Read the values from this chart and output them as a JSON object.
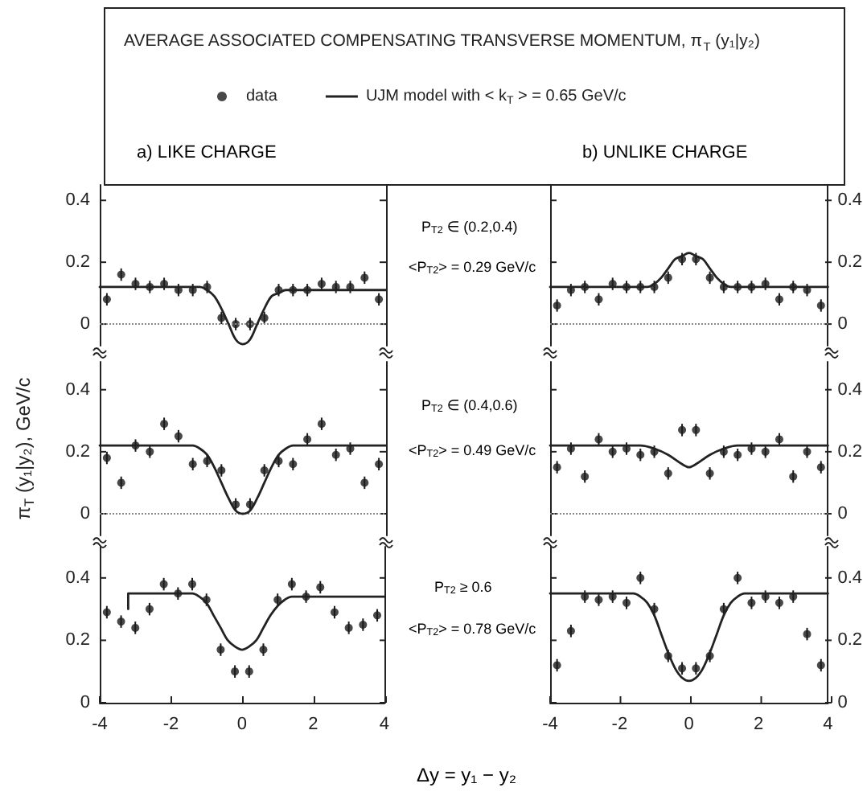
{
  "chart_data": [
    {
      "type": "scatter",
      "title": "AVERAGE ASSOCIATED COMPENSATING TRANSVERSE MOMENTUM, π$_{T}$ (y₁|y₂)",
      "legend": "top",
      "annotations": [
        "a) LIKE CHARGE"
      ],
      "xlim": [
        -4,
        4
      ],
      "ylim": [
        -0.07,
        0.45
      ],
      "yticks": [
        0,
        0.2,
        0.4
      ],
      "tick_labels": "y",
      "ref_lines": [
        {
          "axis": "y",
          "value": 0,
          "line_style": "dotted",
          "color": "#888888"
        }
      ],
      "series": [
        {
          "name": "data",
          "type": "scatter",
          "marker": "circle",
          "color": "#1a1a1a",
          "x": [
            -3.8,
            -3.4,
            -3.0,
            -2.6,
            -2.2,
            -1.8,
            -1.4,
            -1.0,
            -0.6,
            -0.2,
            0.2,
            0.6,
            1.0,
            1.4,
            1.8,
            2.2,
            2.6,
            3.0,
            3.4,
            3.8
          ],
          "values": [
            0.08,
            0.16,
            0.13,
            0.12,
            0.13,
            0.11,
            0.11,
            0.12,
            0.02,
            0,
            0,
            0.02,
            0.11,
            0.11,
            0.11,
            0.13,
            0.12,
            0.12,
            0.15,
            0.08
          ],
          "errors": [
            0.02,
            0.02,
            0.02,
            0.02,
            0.02,
            0.02,
            0.02,
            0.02,
            0.02,
            0.02,
            0.02,
            0.02,
            0.02,
            0.02,
            0.02,
            0.02,
            0.02,
            0.02,
            0.02,
            0.02
          ]
        },
        {
          "name": "UJM model with < k$_{T}$ > = 0.65 GeV/c",
          "type": "line",
          "marker": "none",
          "line_style": "solid",
          "color": "#222222",
          "x": [
            -4,
            -1.2,
            -1.0,
            -0.8,
            -0.6,
            -0.4,
            -0.2,
            0,
            0.2,
            0.4,
            0.6,
            0.8,
            1.0,
            1.2,
            4
          ],
          "values": [
            0.12,
            0.12,
            0.11,
            0.09,
            0.05,
            0.0,
            -0.05,
            -0.065,
            -0.05,
            0.0,
            0.05,
            0.09,
            0.1,
            0.11,
            0.11
          ]
        }
      ]
    },
    {
      "type": "scatter",
      "annotations": [
        "b) UNLIKE CHARGE",
        "P$_{T2}$ ∈ (0.2,0.4)",
        "<P$_{T2}$> = 0.29 GeV/c"
      ],
      "xlim": [
        -4,
        4
      ],
      "ylim": [
        -0.07,
        0.45
      ],
      "yticks": [
        0,
        0.2,
        0.4
      ],
      "tick_labels": "y",
      "ref_lines": [
        {
          "axis": "y",
          "value": 0,
          "line_style": "dotted",
          "color": "#888888"
        }
      ],
      "series": [
        {
          "type": "scatter",
          "marker": "circle",
          "color": "#1a1a1a",
          "x": [
            -3.8,
            -3.4,
            -3.0,
            -2.6,
            -2.2,
            -1.8,
            -1.4,
            -1.0,
            -0.6,
            -0.2,
            0.2,
            0.6,
            1.0,
            1.4,
            1.8,
            2.2,
            2.6,
            3.0,
            3.4,
            3.8
          ],
          "values": [
            0.06,
            0.11,
            0.12,
            0.08,
            0.13,
            0.12,
            0.12,
            0.12,
            0.15,
            0.21,
            0.21,
            0.15,
            0.12,
            0.12,
            0.12,
            0.13,
            0.08,
            0.12,
            0.11,
            0.06
          ],
          "errors": [
            0.02,
            0.02,
            0.02,
            0.02,
            0.02,
            0.02,
            0.02,
            0.02,
            0.02,
            0.02,
            0.02,
            0.02,
            0.02,
            0.02,
            0.02,
            0.02,
            0.02,
            0.02,
            0.02,
            0.02
          ]
        },
        {
          "type": "line",
          "marker": "none",
          "line_style": "solid",
          "color": "#222222",
          "x": [
            -4,
            -1.2,
            -1.0,
            -0.8,
            -0.6,
            -0.4,
            -0.2,
            0,
            0.2,
            0.4,
            0.6,
            0.8,
            1.0,
            1.2,
            4
          ],
          "values": [
            0.12,
            0.12,
            0.13,
            0.15,
            0.18,
            0.21,
            0.22,
            0.23,
            0.22,
            0.21,
            0.18,
            0.15,
            0.13,
            0.12,
            0.12
          ]
        }
      ]
    },
    {
      "type": "scatter",
      "ylabel": "π$_{T}$ (y₁|y₂), GeV/c",
      "xlim": [
        -4,
        4
      ],
      "ylim": [
        -0.07,
        0.49
      ],
      "yticks": [
        0,
        0.2,
        0.4
      ],
      "tick_labels": "y",
      "ref_lines": [
        {
          "axis": "y",
          "value": 0,
          "line_style": "dotted",
          "color": "#888888"
        }
      ],
      "series": [
        {
          "type": "scatter",
          "marker": "circle",
          "color": "#1a1a1a",
          "x": [
            -3.8,
            -3.4,
            -3.0,
            -2.6,
            -2.2,
            -1.8,
            -1.4,
            -1.0,
            -0.6,
            -0.2,
            0.2,
            0.6,
            1.0,
            1.4,
            1.8,
            2.2,
            2.6,
            3.0,
            3.4,
            3.8
          ],
          "values": [
            0.18,
            0.1,
            0.22,
            0.2,
            0.29,
            0.25,
            0.16,
            0.17,
            0.14,
            0.03,
            0.03,
            0.14,
            0.17,
            0.16,
            0.24,
            0.29,
            0.19,
            0.21,
            0.1,
            0.16
          ],
          "errors": [
            0.02,
            0.02,
            0.02,
            0.02,
            0.02,
            0.02,
            0.02,
            0.02,
            0.02,
            0.02,
            0.02,
            0.02,
            0.02,
            0.02,
            0.02,
            0.02,
            0.02,
            0.02,
            0.02,
            0.02
          ]
        },
        {
          "type": "line",
          "marker": "none",
          "line_style": "solid",
          "color": "#222222",
          "x": [
            -4,
            -1.4,
            -1.2,
            -1.0,
            -0.8,
            -0.6,
            -0.4,
            -0.2,
            0,
            0.2,
            0.4,
            0.6,
            0.8,
            1.0,
            1.2,
            1.4,
            4
          ],
          "values": [
            0.22,
            0.22,
            0.21,
            0.19,
            0.15,
            0.1,
            0.05,
            0.01,
            0,
            0.01,
            0.05,
            0.1,
            0.15,
            0.19,
            0.21,
            0.22,
            0.22
          ]
        }
      ]
    },
    {
      "type": "scatter",
      "annotations": [
        "P$_{T2}$ ∈ (0.4,0.6)",
        "<P$_{T2}$> = 0.49 GeV/c"
      ],
      "xlim": [
        -4,
        4
      ],
      "ylim": [
        -0.07,
        0.49
      ],
      "yticks": [
        0,
        0.2,
        0.4
      ],
      "tick_labels": "y",
      "ref_lines": [
        {
          "axis": "y",
          "value": 0,
          "line_style": "dotted",
          "color": "#888888"
        }
      ],
      "series": [
        {
          "type": "scatter",
          "marker": "circle",
          "color": "#1a1a1a",
          "x": [
            -3.8,
            -3.4,
            -3.0,
            -2.6,
            -2.2,
            -1.8,
            -1.4,
            -1.0,
            -0.6,
            -0.2,
            0.2,
            0.6,
            1.0,
            1.4,
            1.8,
            2.2,
            2.6,
            3.0,
            3.4,
            3.8
          ],
          "values": [
            0.15,
            0.21,
            0.12,
            0.24,
            0.2,
            0.21,
            0.19,
            0.2,
            0.13,
            0.27,
            0.27,
            0.13,
            0.2,
            0.19,
            0.21,
            0.2,
            0.24,
            0.12,
            0.2,
            0.15
          ],
          "errors": [
            0.02,
            0.02,
            0.02,
            0.02,
            0.02,
            0.02,
            0.02,
            0.02,
            0.02,
            0.02,
            0.02,
            0.02,
            0.02,
            0.02,
            0.02,
            0.02,
            0.02,
            0.02,
            0.02,
            0.02
          ]
        },
        {
          "type": "line",
          "marker": "none",
          "line_style": "solid",
          "color": "#222222",
          "x": [
            -4,
            -1.4,
            -1.0,
            -0.6,
            -0.2,
            0,
            0.2,
            0.6,
            1.0,
            1.4,
            4
          ],
          "values": [
            0.22,
            0.22,
            0.21,
            0.19,
            0.16,
            0.15,
            0.16,
            0.19,
            0.21,
            0.22,
            0.22
          ]
        }
      ]
    },
    {
      "type": "scatter",
      "xlim": [
        -4,
        4
      ],
      "ylim": [
        0,
        0.5
      ],
      "xticks": [
        -4,
        -2,
        0,
        2,
        4
      ],
      "yticks": [
        0,
        0.2,
        0.4
      ],
      "series": [
        {
          "type": "scatter",
          "marker": "circle",
          "color": "#1a1a1a",
          "x": [
            -3.8,
            -3.4,
            -3.0,
            -2.6,
            -2.2,
            -1.8,
            -1.4,
            -1.0,
            -0.6,
            -0.2,
            0.2,
            0.6,
            1.0,
            1.4,
            1.8,
            2.2,
            2.6,
            3.0,
            3.4,
            3.8
          ],
          "values": [
            0.29,
            0.26,
            0.24,
            0.3,
            0.38,
            0.35,
            0.38,
            0.33,
            0.17,
            0.1,
            0.1,
            0.17,
            0.33,
            0.38,
            0.34,
            0.37,
            0.29,
            0.24,
            0.25,
            0.28
          ],
          "errors": [
            0.02,
            0.02,
            0.02,
            0.02,
            0.02,
            0.02,
            0.02,
            0.02,
            0.02,
            0.02,
            0.02,
            0.02,
            0.02,
            0.02,
            0.02,
            0.02,
            0.02,
            0.02,
            0.02,
            0.02
          ]
        },
        {
          "type": "line",
          "marker": "none",
          "line_style": "solid",
          "color": "#222222",
          "x": [
            -3.2,
            -3.2,
            -1.4,
            -1.2,
            -1.0,
            -0.8,
            -0.6,
            -0.4,
            -0.2,
            0,
            0.2,
            0.4,
            0.6,
            0.8,
            1.0,
            1.2,
            1.4,
            4
          ],
          "values": [
            0.3,
            0.35,
            0.35,
            0.34,
            0.32,
            0.28,
            0.24,
            0.2,
            0.18,
            0.17,
            0.18,
            0.2,
            0.24,
            0.28,
            0.31,
            0.33,
            0.34,
            0.34
          ]
        }
      ]
    },
    {
      "type": "scatter",
      "xlabel": "Δy = y₁ − y₂",
      "annotations": [
        "P$_{T2}$ ≥ 0.6",
        "<P$_{T2}$> = 0.78 GeV/c"
      ],
      "xlim": [
        -4,
        4
      ],
      "ylim": [
        0,
        0.5
      ],
      "xticks": [
        -4,
        -2,
        0,
        2,
        4
      ],
      "yticks": [
        0,
        0.2,
        0.4
      ],
      "series": [
        {
          "type": "scatter",
          "marker": "circle",
          "color": "#1a1a1a",
          "x": [
            -3.8,
            -3.4,
            -3.0,
            -2.6,
            -2.2,
            -1.8,
            -1.4,
            -1.0,
            -0.6,
            -0.2,
            0.2,
            0.6,
            1.0,
            1.4,
            1.8,
            2.2,
            2.6,
            3.0,
            3.4,
            3.8
          ],
          "values": [
            0.12,
            0.23,
            0.34,
            0.33,
            0.34,
            0.32,
            0.4,
            0.3,
            0.15,
            0.11,
            0.11,
            0.15,
            0.3,
            0.4,
            0.32,
            0.34,
            0.32,
            0.34,
            0.22,
            0.12
          ],
          "errors": [
            0.02,
            0.02,
            0.02,
            0.02,
            0.02,
            0.02,
            0.02,
            0.02,
            0.02,
            0.02,
            0.02,
            0.02,
            0.02,
            0.02,
            0.02,
            0.02,
            0.02,
            0.02,
            0.02,
            0.02
          ]
        },
        {
          "type": "line",
          "marker": "none",
          "line_style": "solid",
          "color": "#222222",
          "x": [
            -4,
            -1.6,
            -1.4,
            -1.2,
            -1.0,
            -0.8,
            -0.6,
            -0.4,
            -0.2,
            0,
            0.2,
            0.4,
            0.6,
            0.8,
            1.0,
            1.2,
            1.4,
            1.6,
            4
          ],
          "values": [
            0.35,
            0.35,
            0.34,
            0.32,
            0.28,
            0.22,
            0.16,
            0.11,
            0.08,
            0.07,
            0.08,
            0.11,
            0.16,
            0.22,
            0.28,
            0.32,
            0.34,
            0.35,
            0.35
          ]
        }
      ]
    }
  ]
}
